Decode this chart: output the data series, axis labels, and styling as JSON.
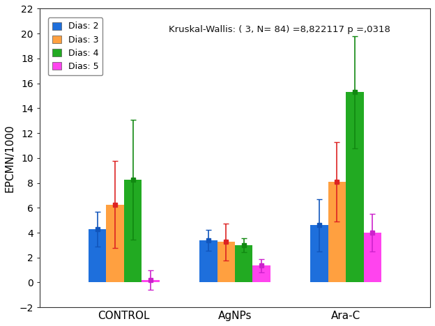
{
  "groups": [
    "CONTROL",
    "AgNPs",
    "Ara-C"
  ],
  "dias": [
    "Dias: 2",
    "Dias: 3",
    "Dias: 4",
    "Dias: 5"
  ],
  "bar_colors": [
    "#1e6fdc",
    "#ffa040",
    "#22aa22",
    "#ff44ee"
  ],
  "error_colors": [
    "#1155bb",
    "#dd2222",
    "#118811",
    "#cc22cc"
  ],
  "means": {
    "CONTROL": [
      4.3,
      6.25,
      8.25,
      0.2
    ],
    "AgNPs": [
      3.4,
      3.25,
      3.0,
      1.35
    ],
    "Ara-C": [
      4.6,
      8.1,
      15.3,
      4.0
    ]
  },
  "errors": {
    "CONTROL": [
      1.4,
      3.5,
      4.8,
      0.8
    ],
    "AgNPs": [
      0.85,
      1.5,
      0.55,
      0.55
    ],
    "Ara-C": [
      2.1,
      3.2,
      4.5,
      1.5
    ]
  },
  "ylabel": "EPCMN/1000",
  "ylim": [
    -2,
    22
  ],
  "yticks": [
    -2,
    0,
    2,
    4,
    6,
    8,
    10,
    12,
    14,
    16,
    18,
    20,
    22
  ],
  "annotation": "Kruskal-Wallis: ( 3, N= 84) =8,822117 p =,0318",
  "bar_width": 0.16,
  "background_color": "#ffffff",
  "plot_bg_color": "#ffffff"
}
